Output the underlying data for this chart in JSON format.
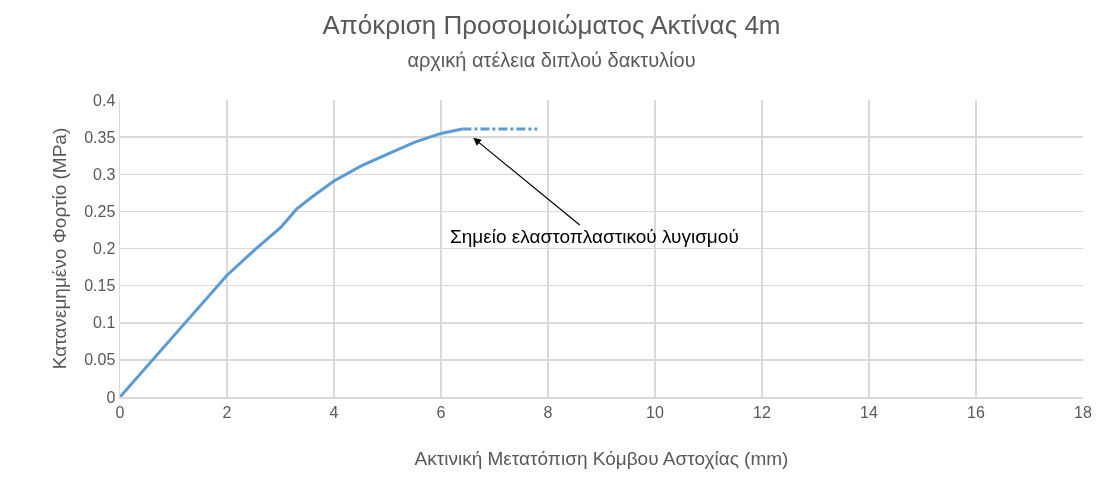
{
  "chart_data": {
    "type": "line",
    "title": "Απόκριση Προσομοιώματος Ακτίνας 4m",
    "subtitle": "αρχική ατέλεια διπλού δακτυλίου",
    "xlabel": "Ακτινική Μετατόπιση Κόμβου Αστοχίας (mm)",
    "ylabel": "Κατανεμημένο Φορτίο (MPa)",
    "series": [
      {
        "color": "#5b9bd5",
        "x": [
          0,
          1,
          2,
          2.5,
          3,
          3.3,
          3.6,
          4,
          4.5,
          5,
          5.5,
          6,
          6.4
        ],
        "values": [
          0,
          0.082,
          0.164,
          0.197,
          0.228,
          0.253,
          0.27,
          0.291,
          0.311,
          0.327,
          0.343,
          0.355,
          0.361
        ],
        "line_style": "solid"
      },
      {
        "color": "#5b9bd5",
        "x": [
          6.4,
          7.8
        ],
        "values": [
          0.361,
          0.361
        ],
        "line_style": "dashed"
      }
    ],
    "annotations": [
      {
        "text": "Σημείο ελαστοπλαστικού λυγισμού",
        "x": 6.4,
        "y": 0.361
      }
    ],
    "xlim": [
      0,
      18
    ],
    "xticks": [
      0,
      2,
      4,
      6,
      8,
      10,
      12,
      14,
      16,
      18
    ],
    "ylim": [
      0,
      0.4
    ],
    "yticks": [
      0,
      0.05,
      0.1,
      0.15,
      0.2,
      0.25,
      0.3,
      0.35,
      0.4
    ],
    "grid": true,
    "marker": "none"
  }
}
